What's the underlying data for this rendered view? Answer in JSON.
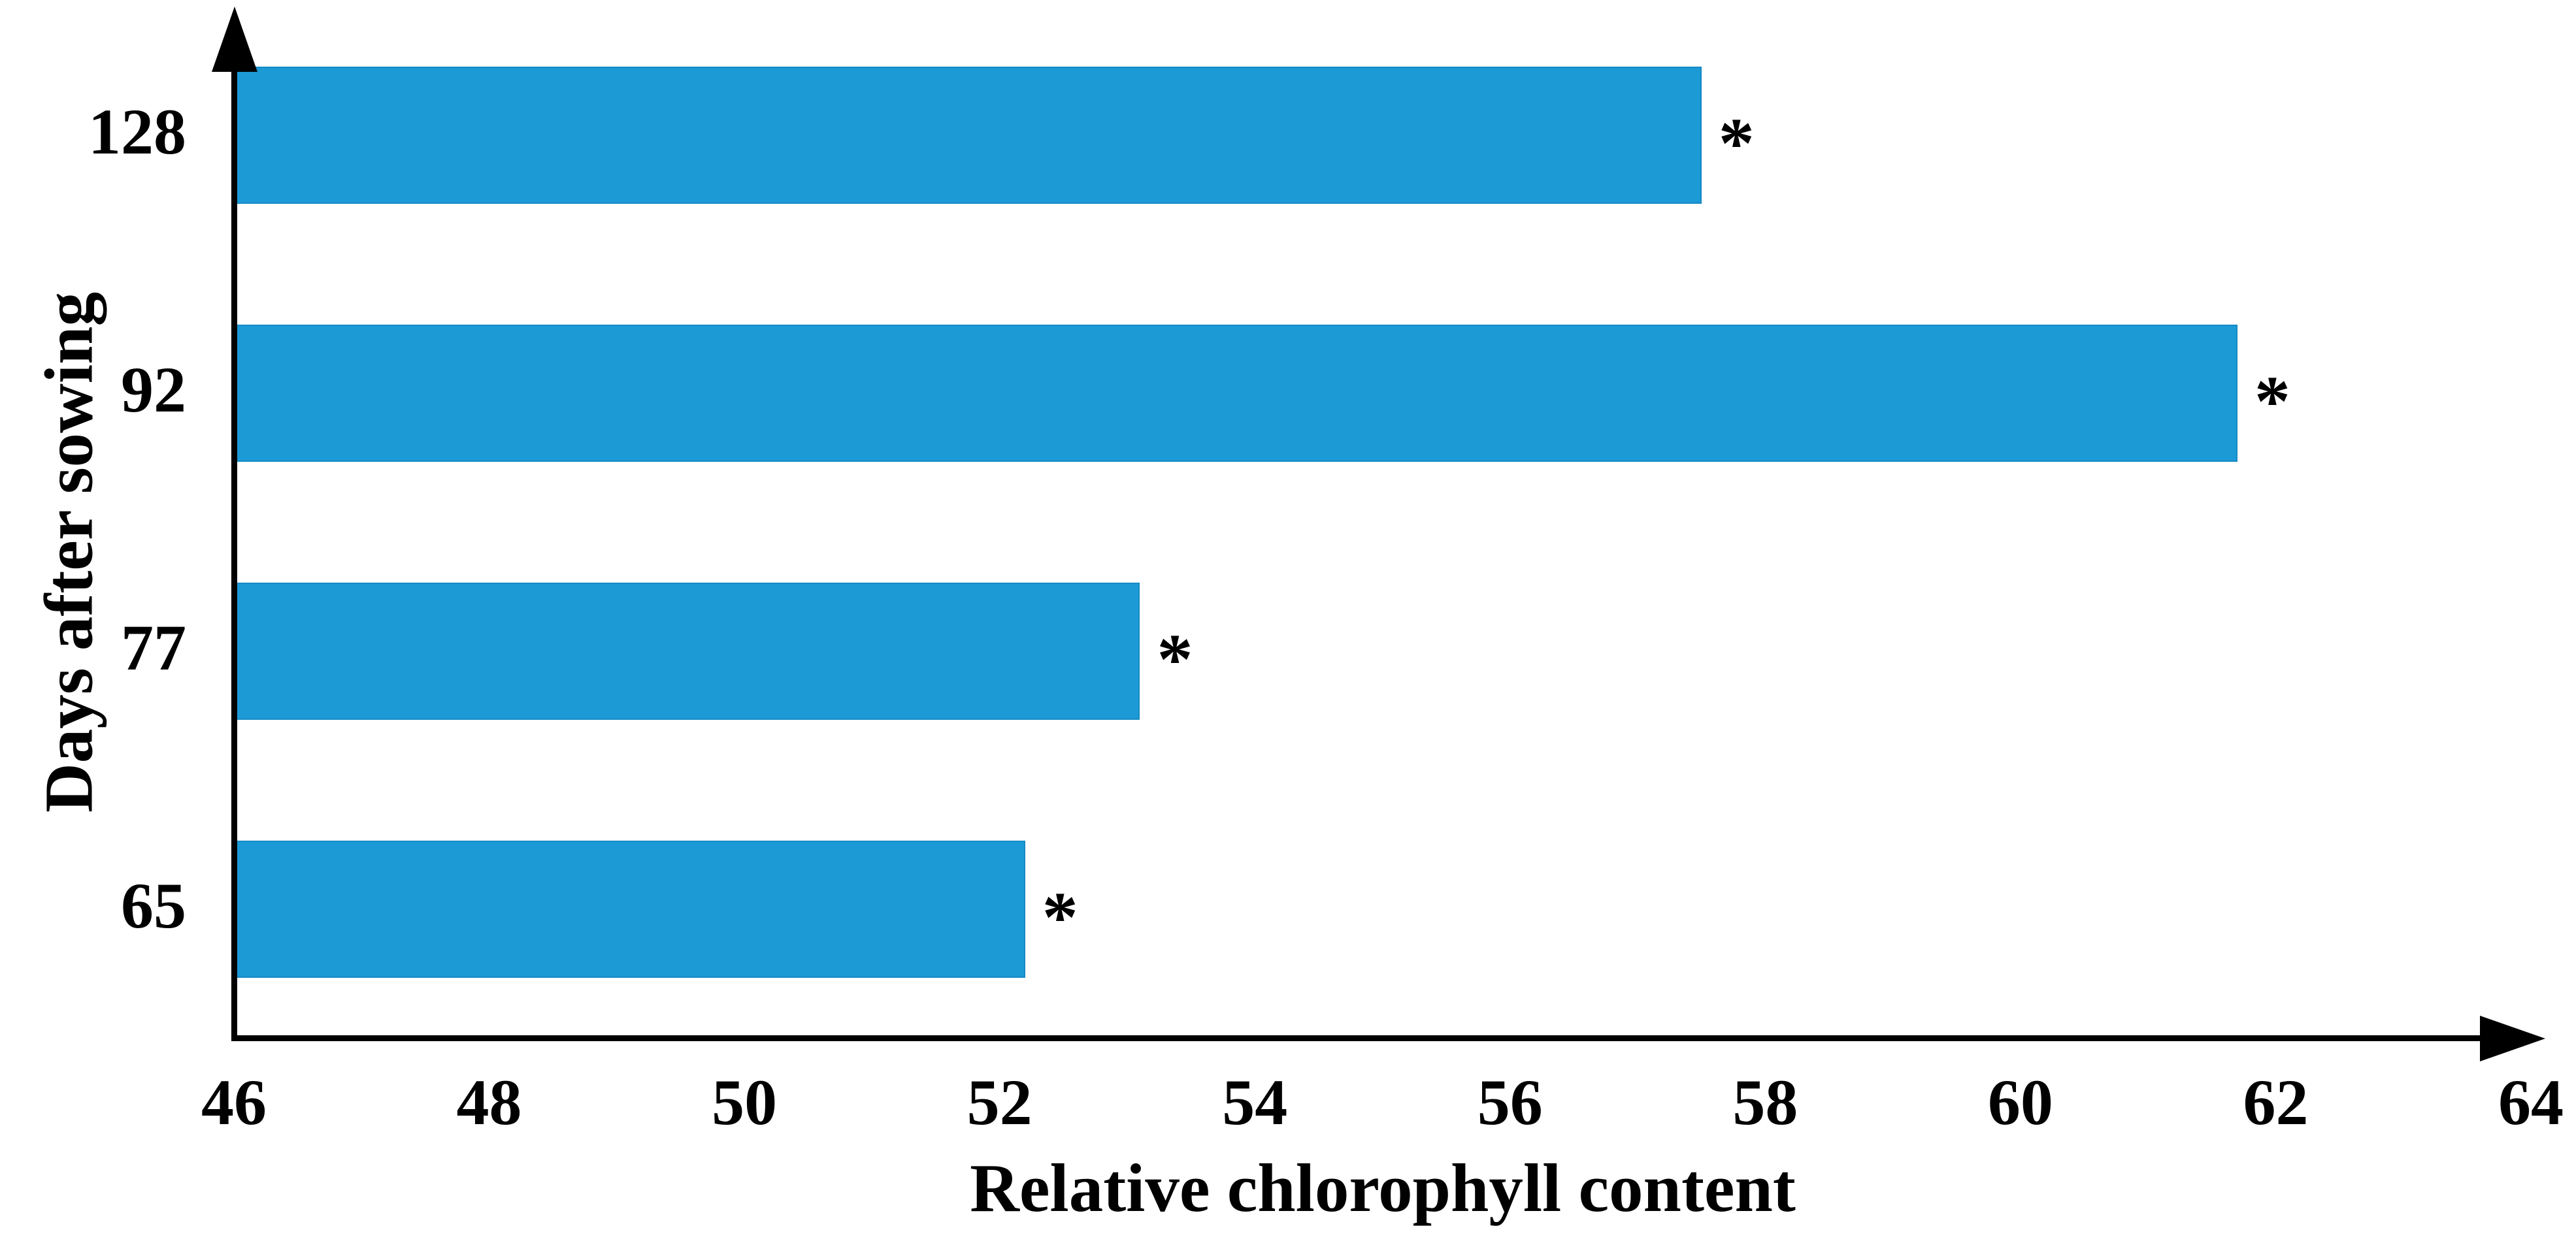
{
  "figure": {
    "background": "#ffffff",
    "bar_color": "#1b9ad6",
    "bar_border_color": "#1689c4",
    "axis_color": "#000000",
    "significance_marker": "*"
  },
  "chart_data": {
    "type": "bar",
    "orientation": "horizontal",
    "title": "",
    "xlabel": "Relative chlorophyll content",
    "ylabel": "Days after sowing",
    "categories": [
      "128",
      "92",
      "77",
      "65"
    ],
    "values": [
      57.5,
      61.7,
      53.1,
      52.2
    ],
    "annotations": [
      "*",
      "*",
      "*",
      "*"
    ],
    "xlim": [
      46,
      64
    ],
    "xticks": [
      46,
      48,
      50,
      52,
      54,
      56,
      58,
      60,
      62,
      64
    ],
    "tick_step": 2,
    "grid": false,
    "legend": "none",
    "axis_arrows": true
  }
}
